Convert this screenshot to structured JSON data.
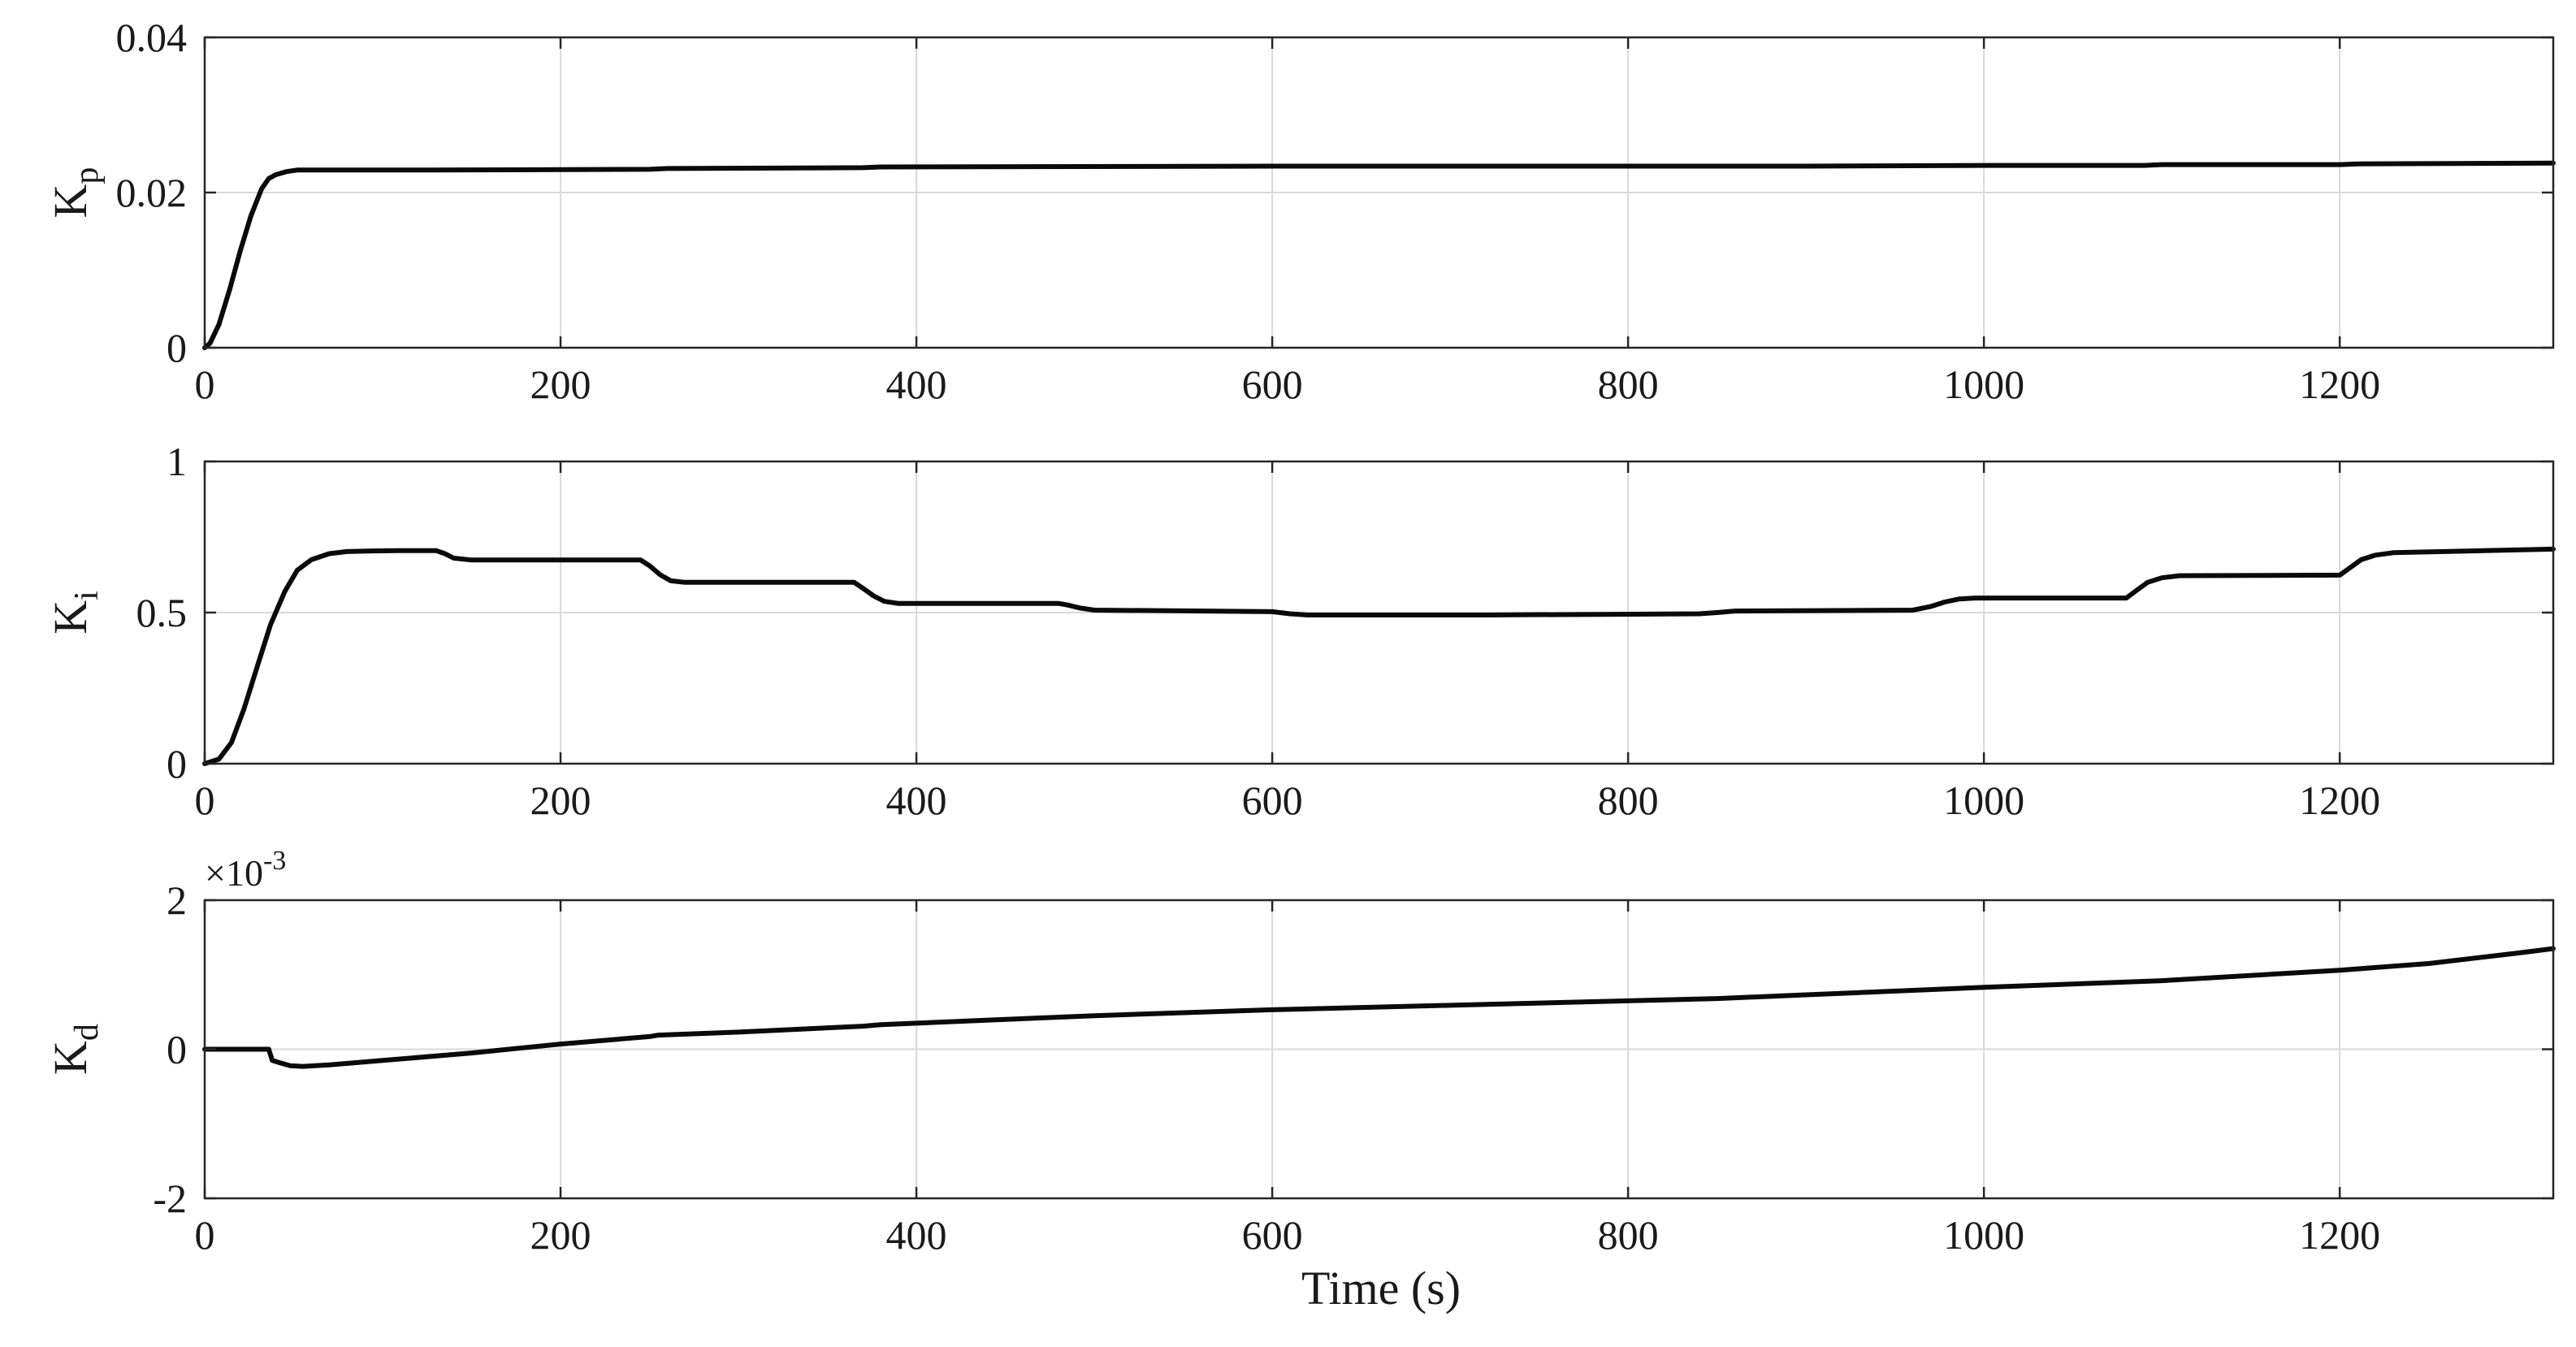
{
  "figure": {
    "xlabel": "Time (s)",
    "line_color": "#0a0a0a",
    "grid_color": "#d9d9d9",
    "axis_color": "#262626"
  },
  "chart_data": [
    {
      "type": "line",
      "id": "kp",
      "ylabel": "K",
      "ylabel_subscript": "p",
      "xlim": [
        0,
        1320
      ],
      "ylim": [
        0,
        0.04
      ],
      "xticks": [
        0,
        200,
        400,
        600,
        800,
        1000,
        1200
      ],
      "xtick_labels": [
        "0",
        "200",
        "400",
        "600",
        "800",
        "1000",
        "1200"
      ],
      "yticks": [
        0,
        0.02,
        0.04
      ],
      "ytick_labels": [
        "0",
        "0.02",
        "0.04"
      ],
      "grid": true,
      "series": [
        {
          "x": [
            0,
            3,
            8,
            14,
            20,
            26,
            32,
            36,
            40,
            46,
            52,
            60,
            80,
            130,
            250,
            260,
            370,
            380,
            600,
            900,
            1000,
            1090,
            1100,
            1200,
            1210,
            1320
          ],
          "y": [
            0,
            0.0006,
            0.003,
            0.0075,
            0.0125,
            0.017,
            0.0205,
            0.0218,
            0.0223,
            0.0227,
            0.0229,
            0.0229,
            0.0229,
            0.0229,
            0.023,
            0.0231,
            0.0232,
            0.0233,
            0.0234,
            0.0234,
            0.0235,
            0.0235,
            0.0236,
            0.0236,
            0.0237,
            0.0238
          ]
        }
      ]
    },
    {
      "type": "line",
      "id": "ki",
      "ylabel": "K",
      "ylabel_subscript": "i",
      "xlim": [
        0,
        1320
      ],
      "ylim": [
        0,
        1
      ],
      "xticks": [
        0,
        200,
        400,
        600,
        800,
        1000,
        1200
      ],
      "xtick_labels": [
        "0",
        "200",
        "400",
        "600",
        "800",
        "1000",
        "1200"
      ],
      "yticks": [
        0,
        0.5,
        1
      ],
      "ytick_labels": [
        "0",
        "0.5",
        "1"
      ],
      "grid": true,
      "series": [
        {
          "x": [
            0,
            8,
            15,
            22,
            30,
            37,
            45,
            52,
            60,
            70,
            80,
            95,
            110,
            130,
            135,
            140,
            150,
            245,
            250,
            256,
            262,
            270,
            365,
            370,
            376,
            382,
            390,
            480,
            485,
            492,
            500,
            600,
            610,
            620,
            720,
            840,
            850,
            860,
            960,
            970,
            978,
            986,
            995,
            1080,
            1085,
            1092,
            1100,
            1110,
            1200,
            1205,
            1212,
            1220,
            1230,
            1320
          ],
          "y": [
            0,
            0.015,
            0.07,
            0.18,
            0.33,
            0.46,
            0.57,
            0.64,
            0.675,
            0.695,
            0.702,
            0.704,
            0.705,
            0.705,
            0.695,
            0.68,
            0.674,
            0.674,
            0.655,
            0.625,
            0.605,
            0.6,
            0.6,
            0.58,
            0.555,
            0.537,
            0.53,
            0.53,
            0.525,
            0.515,
            0.508,
            0.503,
            0.496,
            0.492,
            0.492,
            0.496,
            0.5,
            0.505,
            0.508,
            0.52,
            0.535,
            0.545,
            0.548,
            0.548,
            0.57,
            0.6,
            0.615,
            0.622,
            0.624,
            0.645,
            0.675,
            0.69,
            0.698,
            0.71
          ]
        }
      ]
    },
    {
      "type": "line",
      "id": "kd",
      "ylabel": "K",
      "ylabel_subscript": "d",
      "exponent_prefix": "×10",
      "exponent_power": "-3",
      "xlim": [
        0,
        1320
      ],
      "ylim": [
        -2,
        2
      ],
      "xticks": [
        0,
        200,
        400,
        600,
        800,
        1000,
        1200
      ],
      "xtick_labels": [
        "0",
        "200",
        "400",
        "600",
        "800",
        "1000",
        "1200"
      ],
      "yticks": [
        -2,
        0,
        2
      ],
      "ytick_labels": [
        "-2",
        "0",
        "2"
      ],
      "grid": true,
      "series": [
        {
          "x": [
            0,
            30,
            36,
            38,
            42,
            48,
            55,
            70,
            100,
            150,
            200,
            250,
            255,
            300,
            370,
            380,
            500,
            600,
            700,
            800,
            850,
            900,
            1000,
            1100,
            1200,
            1250,
            1300,
            1320
          ],
          "y": [
            0,
            0,
            0,
            -0.15,
            -0.18,
            -0.22,
            -0.23,
            -0.21,
            -0.15,
            -0.05,
            0.07,
            0.17,
            0.19,
            0.23,
            0.31,
            0.33,
            0.45,
            0.53,
            0.59,
            0.65,
            0.68,
            0.73,
            0.83,
            0.92,
            1.06,
            1.15,
            1.29,
            1.35
          ]
        }
      ]
    }
  ]
}
